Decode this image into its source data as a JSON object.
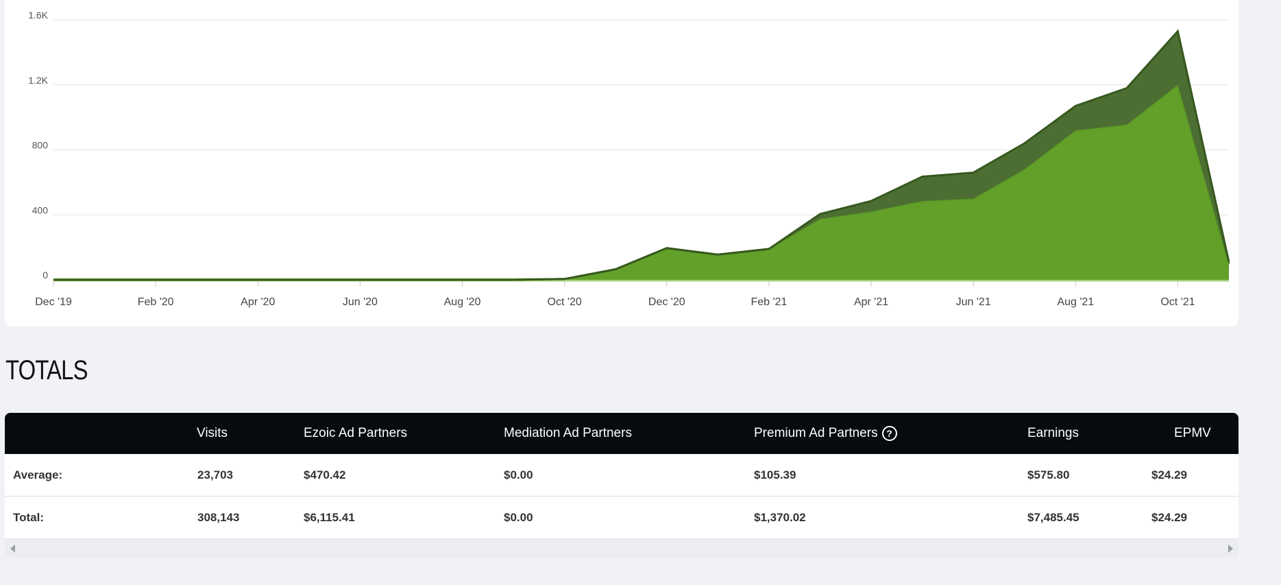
{
  "chart_data": {
    "type": "area",
    "stacked": true,
    "x": [
      "Dec '19",
      "Jan '20",
      "Feb '20",
      "Mar '20",
      "Apr '20",
      "May '20",
      "Jun '20",
      "Jul '20",
      "Aug '20",
      "Sep '20",
      "Oct '20",
      "Nov '20",
      "Dec '20",
      "Jan '21",
      "Feb '21",
      "Mar '21",
      "Apr '21",
      "May '21",
      "Jun '21",
      "Jul '21",
      "Aug '21",
      "Sep '21",
      "Oct '21",
      "Nov '21"
    ],
    "x_tick_labels": [
      "Dec '19",
      "Feb '20",
      "Apr '20",
      "Jun '20",
      "Aug '20",
      "Oct '20",
      "Dec '20",
      "Feb '21",
      "Apr '21",
      "Jun '21",
      "Aug '21",
      "Oct '21"
    ],
    "y_tick_labels": [
      "0",
      "400",
      "800",
      "1.2K",
      "1.6K"
    ],
    "ylim": [
      0,
      1600
    ],
    "grid": true,
    "series": [
      {
        "values": [
          0,
          0,
          0,
          0,
          0,
          0,
          0,
          0,
          0,
          0,
          0,
          0,
          0,
          0,
          0,
          0,
          0,
          0,
          0,
          0,
          0,
          0,
          0,
          0
        ],
        "color": "#a7d07b"
      },
      {
        "values": [
          0,
          0,
          0,
          0,
          0,
          0,
          0,
          0,
          0,
          0,
          5,
          65,
          195,
          155,
          190,
          375,
          420,
          485,
          500,
          680,
          920,
          955,
          1200,
          95
        ],
        "color": "#62a02a"
      },
      {
        "values": [
          0,
          0,
          0,
          0,
          0,
          0,
          0,
          0,
          0,
          0,
          0,
          0,
          0,
          0,
          0,
          30,
          65,
          150,
          160,
          160,
          150,
          225,
          330,
          15
        ],
        "color": "#4d6e32"
      }
    ]
  },
  "totals": {
    "title": "TOTALS",
    "columns": [
      "",
      "Visits",
      "Ezoic Ad Partners",
      "Mediation Ad Partners",
      "Premium Ad Partners",
      "Earnings",
      "EPMV"
    ],
    "help_icon": "question-circle-icon",
    "rows": [
      {
        "label": "Average:",
        "visits": "23,703",
        "ezoic": "$470.42",
        "mediation": "$0.00",
        "premium": "$105.39",
        "earnings": "$575.80",
        "epmv": "$24.29"
      },
      {
        "label": "Total:",
        "visits": "308,143",
        "ezoic": "$6,115.41",
        "mediation": "$0.00",
        "premium": "$1,370.02",
        "earnings": "$7,485.45",
        "epmv": "$24.29"
      }
    ]
  }
}
